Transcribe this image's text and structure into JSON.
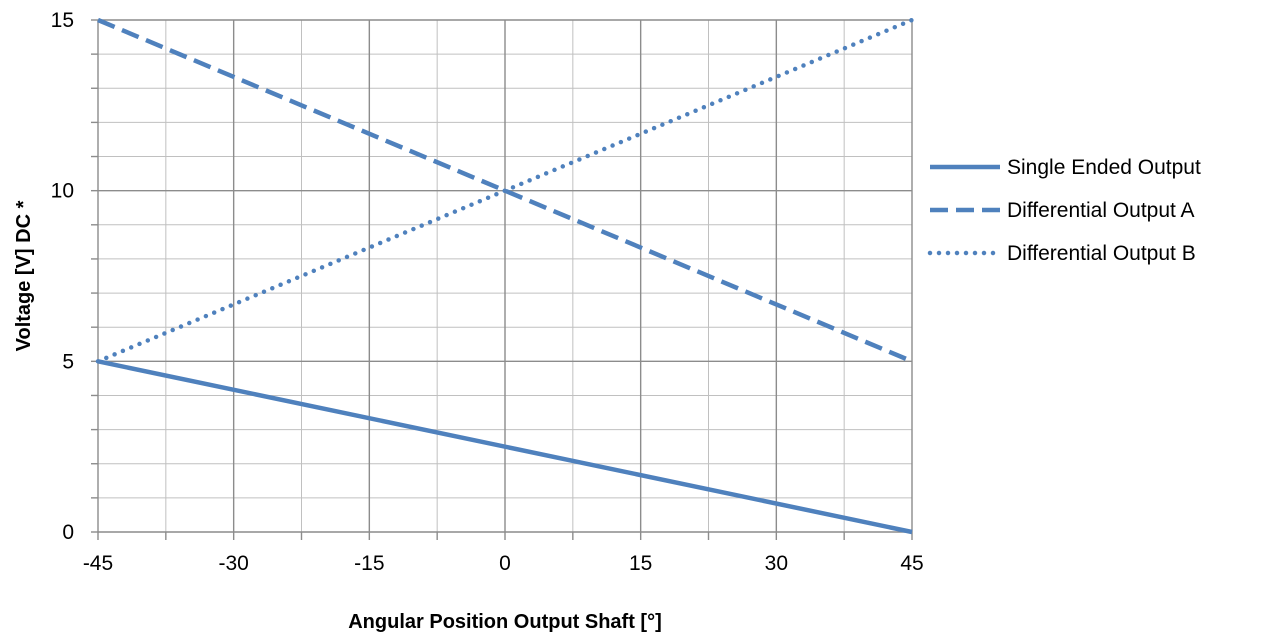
{
  "chart_data": {
    "type": "line",
    "title": "",
    "xlabel": "Angular Position Output Shaft [°]",
    "ylabel": "Voltage [V] DC *",
    "xlim": [
      -45,
      45
    ],
    "ylim": [
      0,
      15
    ],
    "x_ticks": [
      "-45",
      "-30",
      "-15",
      "0",
      "15",
      "30",
      "45"
    ],
    "y_ticks": [
      "0",
      "5",
      "10",
      "15"
    ],
    "grid": true,
    "legend_position": "right",
    "color": "#4f81bd",
    "series": [
      {
        "name": "Single Ended Output",
        "style": "solid",
        "x": [
          -45,
          45
        ],
        "y": [
          5,
          0
        ]
      },
      {
        "name": "Differential Output A",
        "style": "dashed",
        "x": [
          -45,
          45
        ],
        "y": [
          15,
          5
        ]
      },
      {
        "name": "Differential Output B",
        "style": "dotted",
        "x": [
          -45,
          45
        ],
        "y": [
          5,
          15
        ]
      }
    ]
  }
}
